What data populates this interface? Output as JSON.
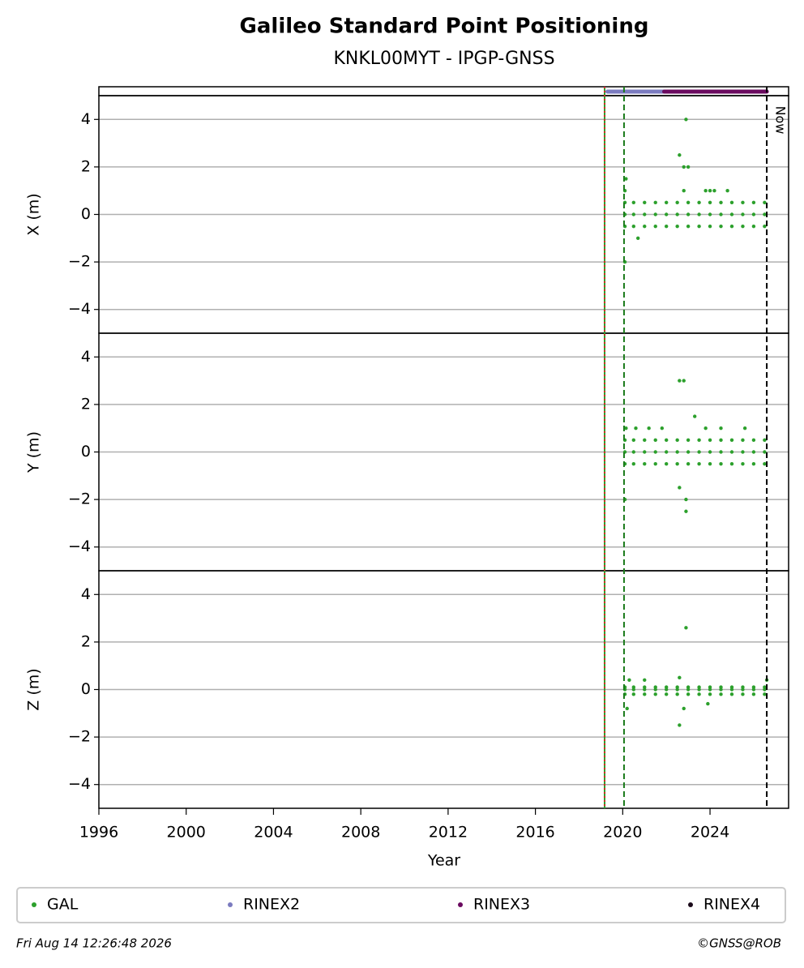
{
  "chart_data": {
    "type": "scatter",
    "title": "Galileo Standard Point Positioning",
    "subtitle": "KNKL00MYT - IPGP-GNSS",
    "xlabel": "Year",
    "xlim": [
      1996,
      2027.6
    ],
    "xticks": [
      1996,
      2000,
      2004,
      2008,
      2012,
      2016,
      2020,
      2024
    ],
    "grid": true,
    "legend": "below",
    "series": [
      {
        "name": "GAL",
        "color": "#2ca02c"
      },
      {
        "name": "RINEX2",
        "color": "#7b7bbf",
        "span": [
          2019.3,
          2021.9
        ]
      },
      {
        "name": "RINEX3",
        "color": "#6a0a5f",
        "span": [
          2021.9,
          2026.6
        ]
      },
      {
        "name": "RINEX4",
        "color": "#1a0a1a"
      }
    ],
    "vlines": [
      {
        "x": 2019.17,
        "color": "#2ca02c",
        "style": "solid"
      },
      {
        "x": 2019.17,
        "color": "#d62728",
        "style": "dotted"
      },
      {
        "x": 2020.06,
        "color": "#1a7a1a",
        "style": "dashed"
      },
      {
        "x": 2026.6,
        "color": "#000000",
        "style": "dashed"
      }
    ],
    "now_label": "Now",
    "panels": [
      {
        "ylabel": "X (m)",
        "ylim": [
          -5,
          5
        ],
        "yticks": [
          {
            "value": -4,
            "label": "−4"
          },
          {
            "value": -2,
            "label": "−2"
          },
          0,
          2,
          4
        ],
        "x": [
          2020.1,
          2020.5,
          2021.0,
          2021.5,
          2022.0,
          2022.5,
          2023.0,
          2023.5,
          2024.0,
          2024.5,
          2025.0,
          2025.5,
          2026.0,
          2026.5,
          2020.1,
          2020.5,
          2021.0,
          2021.5,
          2022.0,
          2022.5,
          2023.0,
          2023.5,
          2024.0,
          2024.5,
          2025.0,
          2025.5,
          2026.0,
          2026.5,
          2020.1,
          2020.5,
          2021.0,
          2021.5,
          2022.0,
          2022.5,
          2023.0,
          2023.5,
          2024.0,
          2024.5,
          2025.0,
          2025.5,
          2026.0,
          2026.5,
          2020.15,
          2020.1,
          2020.1,
          2020.7,
          2022.6,
          2022.8,
          2023.0,
          2022.9,
          2022.8,
          2023.8,
          2024.0,
          2024.2,
          2024.8
        ],
        "values": [
          0.5,
          0.5,
          0.5,
          0.5,
          0.5,
          0.5,
          0.5,
          0.5,
          0.5,
          0.5,
          0.5,
          0.5,
          0.5,
          0.5,
          0,
          0,
          0,
          0,
          0,
          0,
          0,
          0,
          0,
          0,
          0,
          0,
          0,
          0,
          -0.5,
          -0.5,
          -0.5,
          -0.5,
          -0.5,
          -0.5,
          -0.5,
          -0.5,
          -0.5,
          -0.5,
          -0.5,
          -0.5,
          -0.5,
          -0.5,
          1.5,
          1.0,
          -2,
          -1,
          2.5,
          2,
          2,
          4,
          1,
          1,
          1,
          1,
          1
        ]
      },
      {
        "ylabel": "Y (m)",
        "ylim": [
          -5,
          5
        ],
        "yticks": [
          {
            "value": -4,
            "label": "−4"
          },
          {
            "value": -2,
            "label": "−2"
          },
          0,
          2,
          4
        ],
        "x": [
          2020.1,
          2020.5,
          2021.0,
          2021.5,
          2022.0,
          2022.5,
          2023.0,
          2023.5,
          2024.0,
          2024.5,
          2025.0,
          2025.5,
          2026.0,
          2026.5,
          2020.1,
          2020.5,
          2021.0,
          2021.5,
          2022.0,
          2022.5,
          2023.0,
          2023.5,
          2024.0,
          2024.5,
          2025.0,
          2025.5,
          2026.0,
          2026.5,
          2020.1,
          2020.5,
          2021.0,
          2021.5,
          2022.0,
          2022.5,
          2023.0,
          2023.5,
          2024.0,
          2024.5,
          2025.0,
          2025.5,
          2026.0,
          2026.5,
          2020.15,
          2020.1,
          2020.6,
          2021.2,
          2021.8,
          2022.6,
          2022.8,
          2022.6,
          2022.9,
          2022.9,
          2023.3,
          2023.8,
          2024.5,
          2025.6
        ],
        "values": [
          0.5,
          0.5,
          0.5,
          0.5,
          0.5,
          0.5,
          0.5,
          0.5,
          0.5,
          0.5,
          0.5,
          0.5,
          0.5,
          0.5,
          0,
          0,
          0,
          0,
          0,
          0,
          0,
          0,
          0,
          0,
          0,
          0,
          0,
          0,
          -0.5,
          -0.5,
          -0.5,
          -0.5,
          -0.5,
          -0.5,
          -0.5,
          -0.5,
          -0.5,
          -0.5,
          -0.5,
          -0.5,
          -0.5,
          -0.5,
          1,
          -2,
          1,
          1,
          1,
          3,
          3,
          -1.5,
          -2,
          -2.5,
          1.5,
          1,
          1,
          1
        ]
      },
      {
        "ylabel": "Z (m)",
        "ylim": [
          -5,
          5
        ],
        "yticks": [
          {
            "value": -4,
            "label": "−4"
          },
          {
            "value": -2,
            "label": "−2"
          },
          0,
          2,
          4
        ],
        "x": [
          2020.1,
          2020.5,
          2021.0,
          2021.5,
          2022.0,
          2022.5,
          2023.0,
          2023.5,
          2024.0,
          2024.5,
          2025.0,
          2025.5,
          2026.0,
          2026.5,
          2020.1,
          2020.5,
          2021.0,
          2021.5,
          2022.0,
          2022.5,
          2023.0,
          2023.5,
          2024.0,
          2024.5,
          2025.0,
          2025.5,
          2026.0,
          2026.5,
          2020.1,
          2020.5,
          2021.0,
          2021.5,
          2022.0,
          2022.5,
          2023.0,
          2023.5,
          2024.0,
          2024.5,
          2025.0,
          2025.5,
          2026.0,
          2026.5,
          2020.2,
          2020.3,
          2021.0,
          2022.6,
          2022.6,
          2022.8,
          2022.9,
          2023.9,
          2026.6
        ],
        "values": [
          0.1,
          0.1,
          0.1,
          0.1,
          0.1,
          0.1,
          0.1,
          0.1,
          0.1,
          0.1,
          0.1,
          0.1,
          0.1,
          0.1,
          0,
          0,
          0,
          0,
          0,
          0,
          0,
          0,
          0,
          0,
          0,
          0,
          0,
          0,
          -0.2,
          -0.2,
          -0.2,
          -0.2,
          -0.2,
          -0.2,
          -0.2,
          -0.2,
          -0.2,
          -0.2,
          -0.2,
          -0.2,
          -0.2,
          -0.2,
          -0.8,
          0.4,
          0.4,
          0.5,
          -1.5,
          -0.8,
          2.6,
          -0.6,
          0.4
        ]
      }
    ],
    "footer": {
      "timestamp": "Fri Aug 14 12:26:48 2026",
      "credit": "©GNSS@ROB"
    }
  }
}
